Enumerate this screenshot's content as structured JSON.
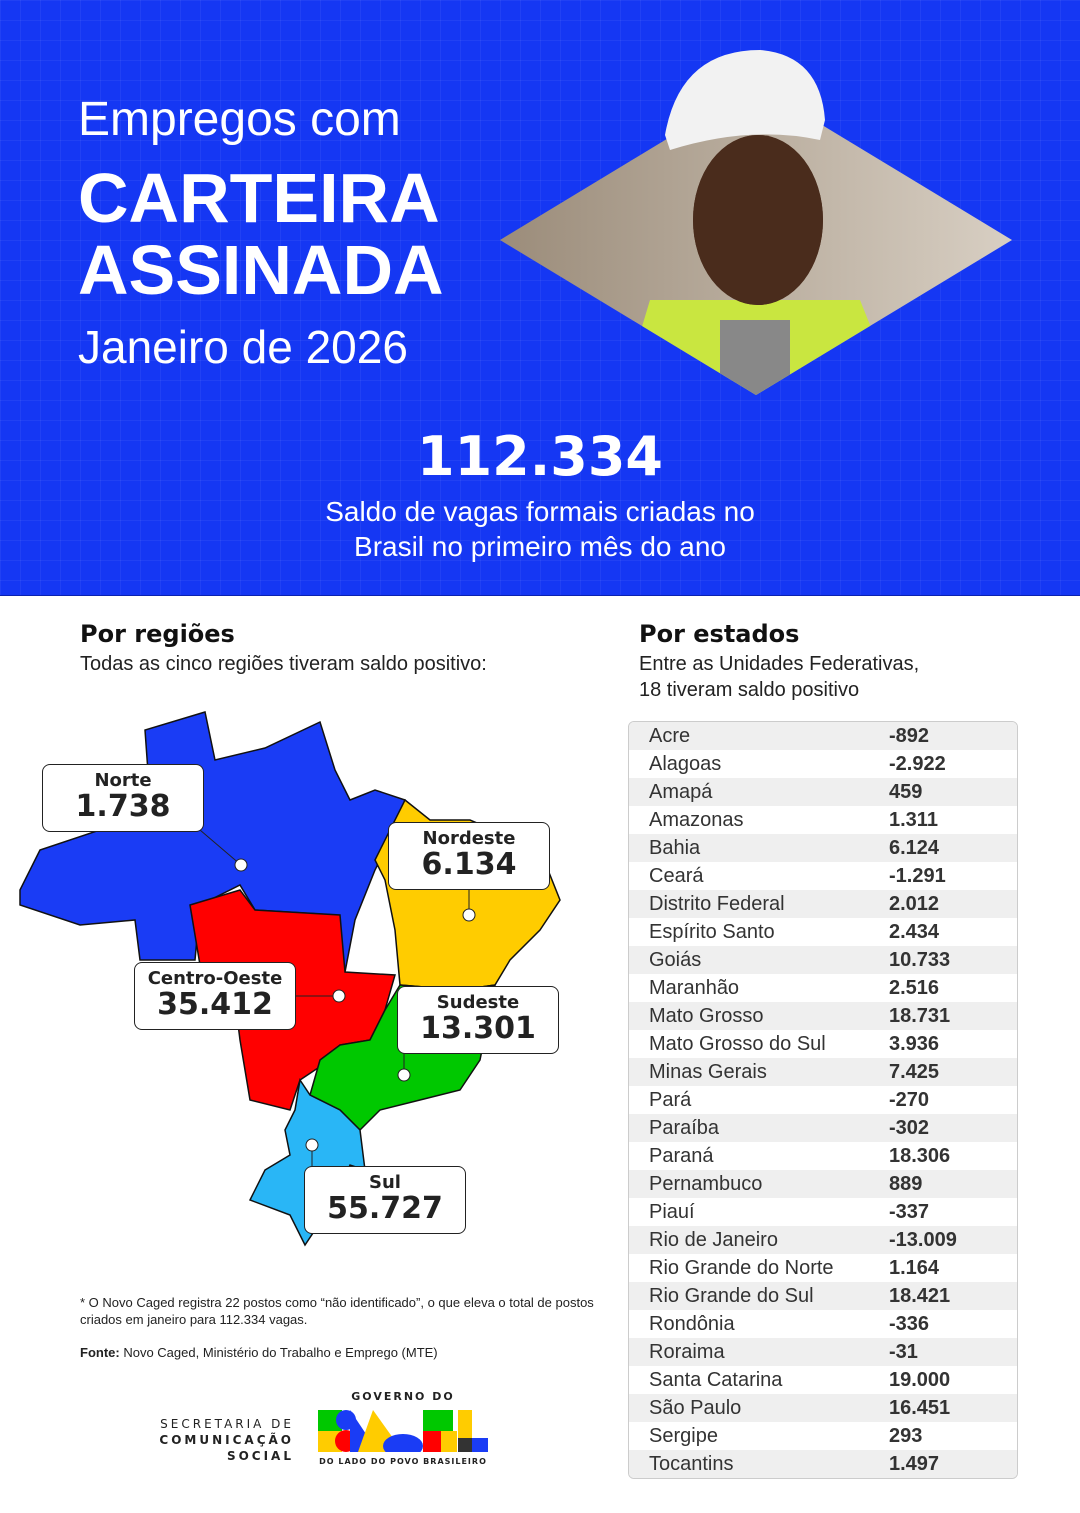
{
  "header": {
    "line1": "Empregos com",
    "line2": "CARTEIRA",
    "line3": "ASSINADA",
    "period": "Janeiro de 2026"
  },
  "headline": {
    "value": "112.334",
    "desc_line1": "Saldo de vagas formais criadas no",
    "desc_line2": "Brasil no primeiro mês do ano"
  },
  "regions": {
    "title": "Por regiões",
    "subtitle": "Todas as cinco regiões tiveram saldo positivo:",
    "items": [
      {
        "name": "Norte",
        "value": "1.738",
        "color": "#1a3cf5"
      },
      {
        "name": "Nordeste",
        "value": "6.134",
        "color": "#ffcc00"
      },
      {
        "name": "Centro-Oeste",
        "value": "35.412",
        "color": "#ff0000"
      },
      {
        "name": "Sudeste",
        "value": "13.301",
        "color": "#00c800"
      },
      {
        "name": "Sul",
        "value": "55.727",
        "color": "#29b6f6"
      }
    ]
  },
  "states": {
    "title": "Por estados",
    "subtitle_line1": "Entre as Unidades Federativas,",
    "subtitle_line2": "18 tiveram saldo positivo",
    "rows": [
      [
        "Acre",
        "-892"
      ],
      [
        "Alagoas",
        "-2.922"
      ],
      [
        "Amapá",
        "459"
      ],
      [
        "Amazonas",
        "1.311"
      ],
      [
        "Bahia",
        "6.124"
      ],
      [
        "Ceará",
        "-1.291"
      ],
      [
        "Distrito Federal",
        "2.012"
      ],
      [
        "Espírito Santo",
        "2.434"
      ],
      [
        "Goiás",
        "10.733"
      ],
      [
        "Maranhão",
        "2.516"
      ],
      [
        "Mato Grosso",
        "18.731"
      ],
      [
        "Mato Grosso do Sul",
        "3.936"
      ],
      [
        "Minas Gerais",
        "7.425"
      ],
      [
        "Pará",
        "-270"
      ],
      [
        "Paraíba",
        "-302"
      ],
      [
        "Paraná",
        "18.306"
      ],
      [
        "Pernambuco",
        "889"
      ],
      [
        "Piauí",
        "-337"
      ],
      [
        "Rio de Janeiro",
        "-13.009"
      ],
      [
        "Rio Grande do Norte",
        "1.164"
      ],
      [
        "Rio Grande do Sul",
        "18.421"
      ],
      [
        "Rondônia",
        "-336"
      ],
      [
        "Roraima",
        "-31"
      ],
      [
        "Santa Catarina",
        "19.000"
      ],
      [
        "São Paulo",
        "16.451"
      ],
      [
        "Sergipe",
        "293"
      ],
      [
        "Tocantins",
        "1.497"
      ]
    ]
  },
  "footer": {
    "note": "* O Novo Caged registra 22 postos como “não identificado”, o que eleva o total de postos criados em janeiro para 112.334 vagas.",
    "source_label": "Fonte:",
    "source_text": " Novo Caged, Ministério do Trabalho e Emprego (MTE)",
    "secom_line1": "SECRETARIA DE",
    "secom_line2": "COMUNICAÇÃO SOCIAL",
    "gov_top": "GOVERNO DO",
    "gov_logo": "BRASIL",
    "gov_bottom": "DO LADO DO POVO BRASILEIRO"
  },
  "colors": {
    "brand_blue": "#1537f3"
  }
}
